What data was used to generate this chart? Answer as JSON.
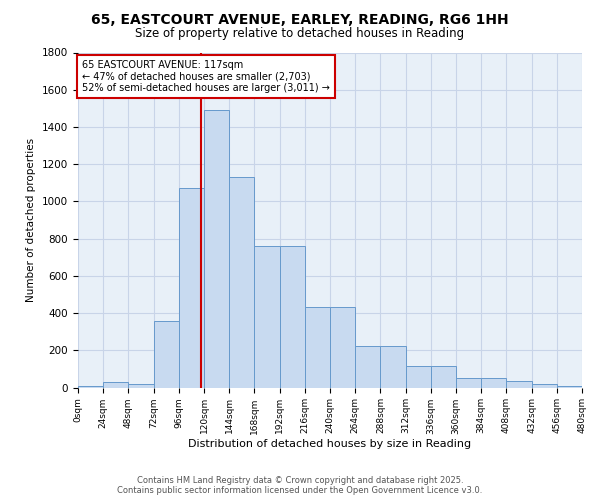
{
  "title": "65, EASTCOURT AVENUE, EARLEY, READING, RG6 1HH",
  "subtitle": "Size of property relative to detached houses in Reading",
  "xlabel": "Distribution of detached houses by size in Reading",
  "ylabel": "Number of detached properties",
  "bar_edges": [
    0,
    24,
    48,
    72,
    96,
    120,
    144,
    168,
    192,
    216,
    240,
    264,
    288,
    312,
    336,
    360,
    384,
    408,
    432,
    456,
    480
  ],
  "bar_heights": [
    10,
    30,
    20,
    360,
    1070,
    1490,
    1130,
    760,
    760,
    430,
    430,
    225,
    225,
    115,
    115,
    50,
    50,
    35,
    20,
    10
  ],
  "bar_color": "#c8daf0",
  "bar_edgecolor": "#6699cc",
  "grid_color": "#c8d4e8",
  "bg_color": "#e8f0f8",
  "property_sqm": 117,
  "annotation_line1": "65 EASTCOURT AVENUE: 117sqm",
  "annotation_line2": "← 47% of detached houses are smaller (2,703)",
  "annotation_line3": "52% of semi-detached houses are larger (3,011) →",
  "vline_color": "#cc0000",
  "annotation_box_color": "#cc0000",
  "ylim": [
    0,
    1800
  ],
  "yticks": [
    0,
    200,
    400,
    600,
    800,
    1000,
    1200,
    1400,
    1600,
    1800
  ],
  "xtick_labels": [
    "0sqm",
    "24sqm",
    "48sqm",
    "72sqm",
    "96sqm",
    "120sqm",
    "144sqm",
    "168sqm",
    "192sqm",
    "216sqm",
    "240sqm",
    "264sqm",
    "288sqm",
    "312sqm",
    "336sqm",
    "360sqm",
    "384sqm",
    "408sqm",
    "432sqm",
    "456sqm",
    "480sqm"
  ],
  "footer_line1": "Contains HM Land Registry data © Crown copyright and database right 2025.",
  "footer_line2": "Contains public sector information licensed under the Open Government Licence v3.0."
}
